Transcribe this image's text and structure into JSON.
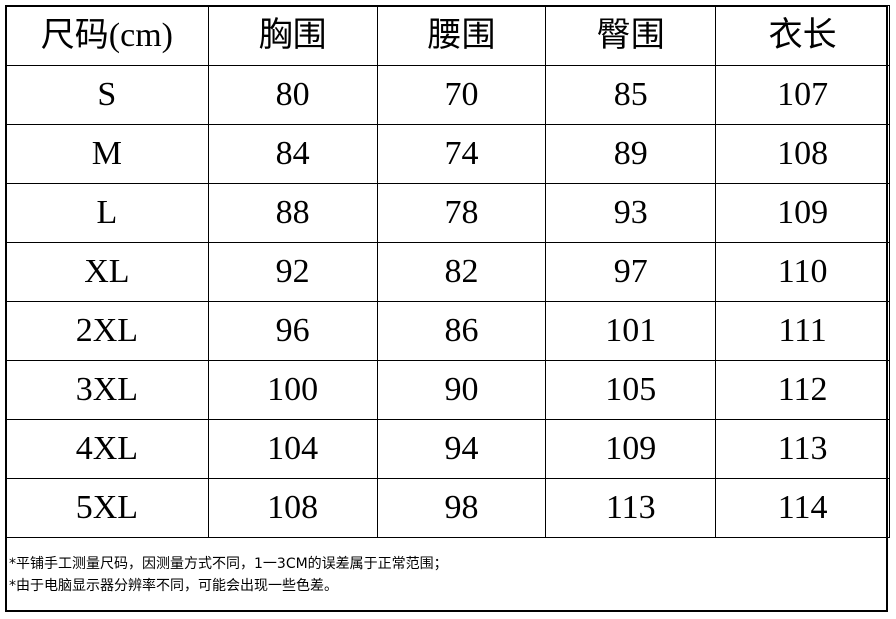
{
  "table": {
    "headers": [
      "尺码(cm)",
      "胸围",
      "腰围",
      "臀围",
      "衣长"
    ],
    "rows": [
      [
        "S",
        "80",
        "70",
        "85",
        "107"
      ],
      [
        "M",
        "84",
        "74",
        "89",
        "108"
      ],
      [
        "L",
        "88",
        "78",
        "93",
        "109"
      ],
      [
        "XL",
        "92",
        "82",
        "97",
        "110"
      ],
      [
        "2XL",
        "96",
        "86",
        "101",
        "111"
      ],
      [
        "3XL",
        "100",
        "90",
        "105",
        "112"
      ],
      [
        "4XL",
        "104",
        "94",
        "109",
        "113"
      ],
      [
        "5XL",
        "108",
        "98",
        "113",
        "114"
      ]
    ]
  },
  "notes": [
    "*平铺手工测量尺码，因测量方式不同，1一3CM的误差属于正常范围；",
    "*由于电脑显示器分辨率不同，可能会出现一些色差。"
  ]
}
